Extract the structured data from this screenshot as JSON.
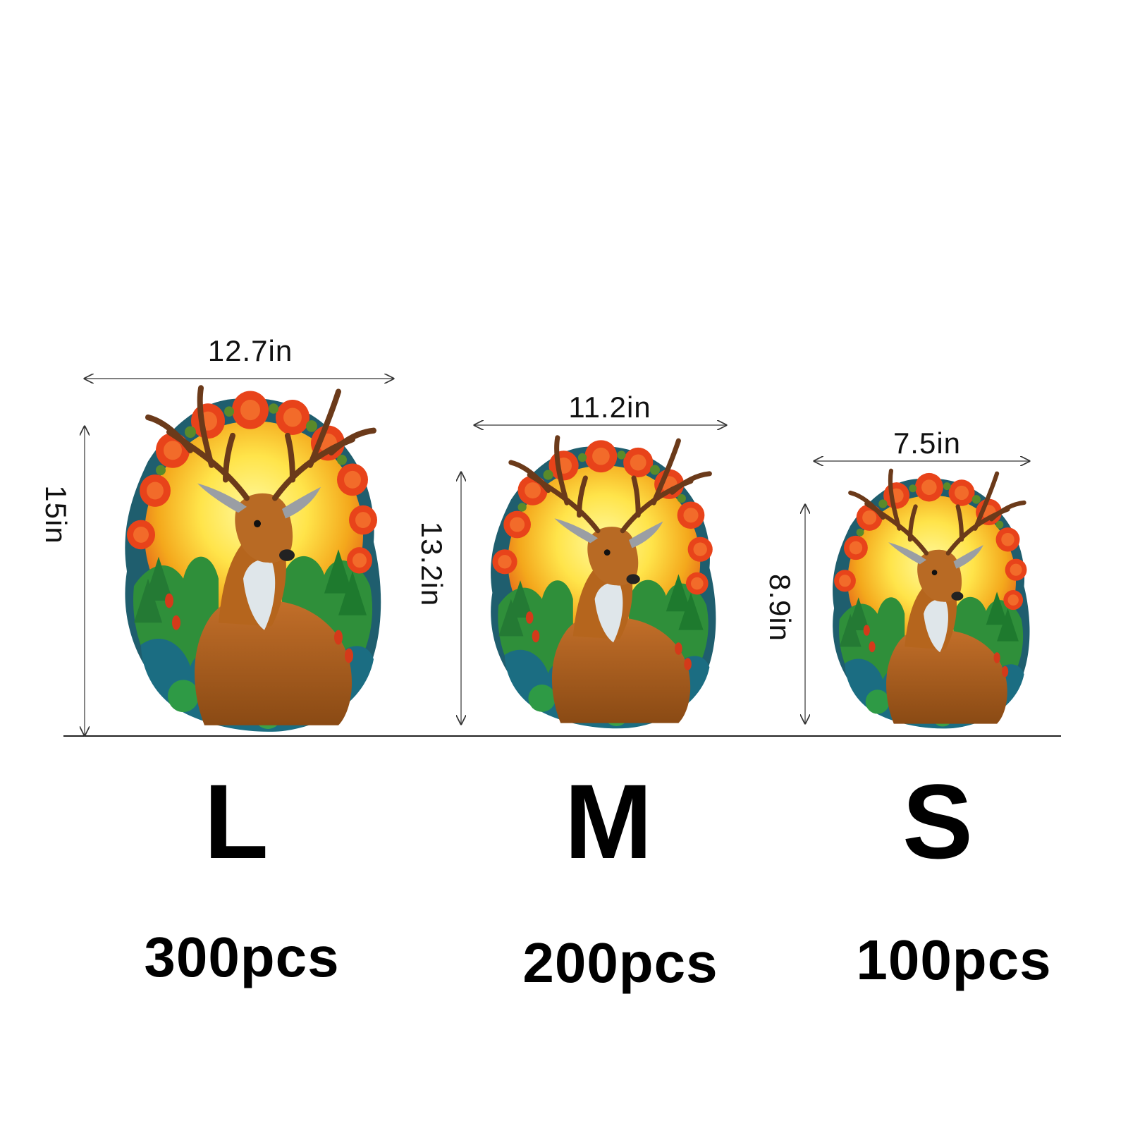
{
  "sizes": [
    {
      "letter": "L",
      "pieces": "300pcs",
      "width_label": "12.7in",
      "height_label": "15in"
    },
    {
      "letter": "M",
      "pieces": "200pcs",
      "width_label": "11.2in",
      "height_label": "13.2in"
    },
    {
      "letter": "S",
      "pieces": "100pcs",
      "width_label": "7.5in",
      "height_label": "8.9in"
    }
  ],
  "colors": {
    "flower_orange": "#e8431a",
    "glow_yellow": "#ffe44a",
    "glow_orange": "#f08a10",
    "forest_green": "#2f8f3a",
    "teal": "#1f6f80",
    "deer_brown": "#b5651d",
    "antler": "#6b3a1a",
    "chest_white": "#dfe6ea"
  }
}
